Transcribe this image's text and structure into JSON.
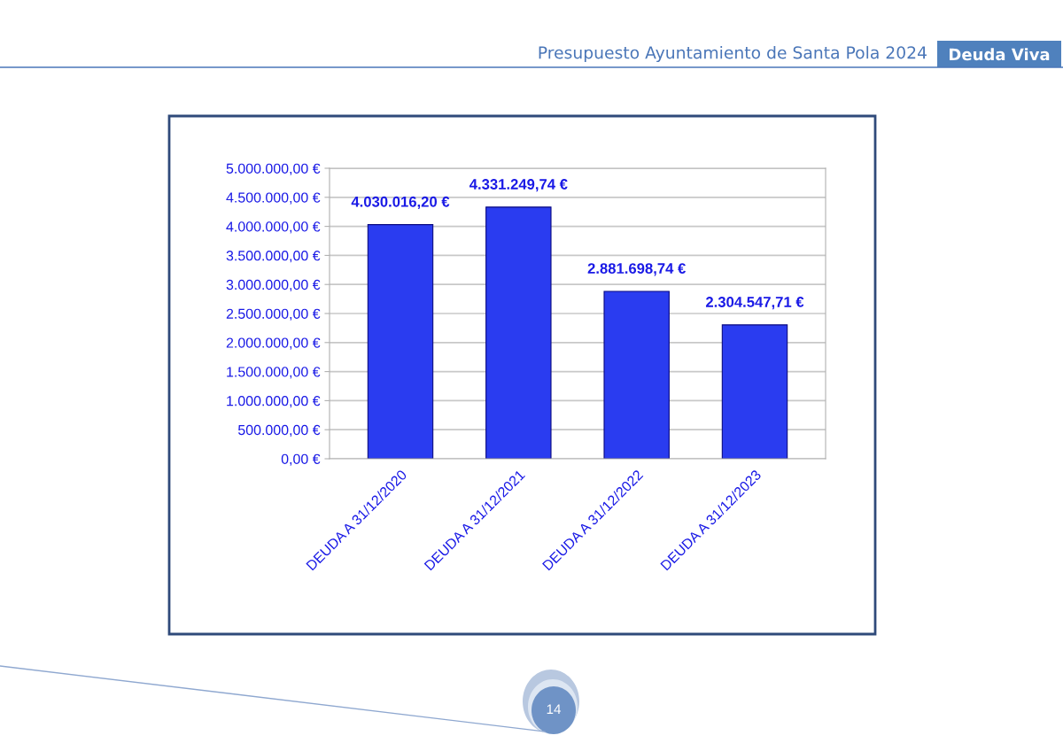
{
  "chart_data": {
    "type": "bar",
    "title": "Presupuesto Ayuntamiento de Santa Pola 2024",
    "subtitle": "Deuda Viva",
    "categories": [
      "DEUDA A 31/12/2020",
      "DEUDA A 31/12/2021",
      "DEUDA A 31/12/2022",
      "DEUDA A 31/12/2023"
    ],
    "values": [
      4030016.2,
      4331249.74,
      2881698.74,
      2304547.71
    ],
    "color": "#2a3cf0",
    "value_labels": [
      "4.030.016,20 €",
      "4.331.249,74 €",
      "2.881.698,74 €",
      "2.304.547,71 €"
    ],
    "ylim": [
      0,
      5000000
    ],
    "yticks": [
      {
        "value": 0,
        "label": "0,00 €"
      },
      {
        "value": 500000,
        "label": "500.000,00 €"
      },
      {
        "value": 1000000,
        "label": "1.000.000,00 €"
      },
      {
        "value": 1500000,
        "label": "1.500.000,00 €"
      },
      {
        "value": 2000000,
        "label": "2.000.000,00 €"
      },
      {
        "value": 2500000,
        "label": "2.500.000,00 €"
      },
      {
        "value": 3000000,
        "label": "3.000.000,00 €"
      },
      {
        "value": 3500000,
        "label": "3.500.000,00 €"
      },
      {
        "value": 4000000,
        "label": "4.000.000,00 €"
      },
      {
        "value": 4500000,
        "label": "4.500.000,00 €"
      },
      {
        "value": 5000000,
        "label": "5.000.000,00 €"
      }
    ],
    "grid": "y",
    "annotations": [
      "14"
    ]
  }
}
